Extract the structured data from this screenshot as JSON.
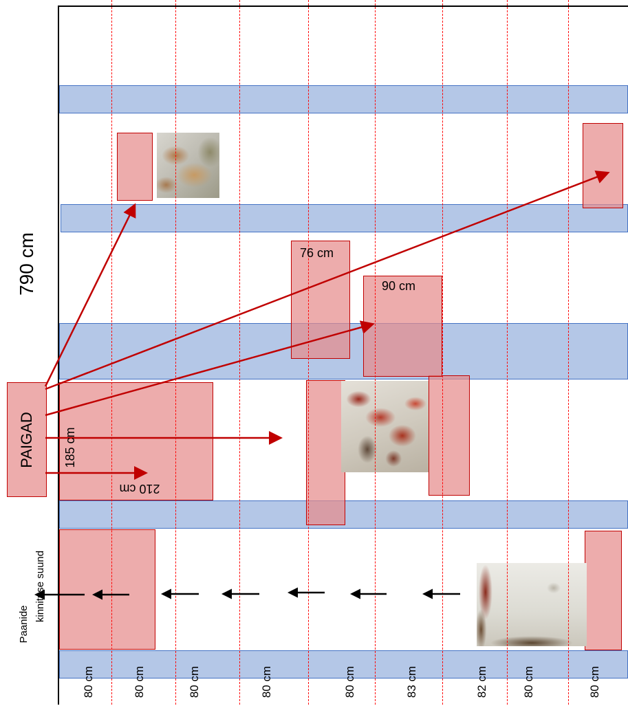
{
  "height_label": "790 cm",
  "paigad_label": "PAIGAD",
  "direction_label_line1": "Paanide",
  "direction_label_line2": "kinnituse suund",
  "patch_labels": {
    "width_185": "185 cm",
    "width_210": "210 cm",
    "width_76": "76 cm",
    "width_90": "90 cm"
  },
  "column_widths": [
    "80 cm",
    "80 cm",
    "80 cm",
    "80 cm",
    "80 cm",
    "83 cm",
    "82 cm",
    "80 cm",
    "80 cm"
  ],
  "colors": {
    "band_fill": "#b4c7e7",
    "band_stroke": "#4472c4",
    "patch_fill": "#e88c8c",
    "patch_stroke": "#c00000",
    "guide_line": "#ff0000",
    "arrow_red": "#c00000",
    "arrow_black": "#000000"
  },
  "icons": {
    "photo_1": "peeling-paint-photo",
    "photo_2": "mural-fragment-photo",
    "photo_3": "deteriorated-panel-photo"
  }
}
